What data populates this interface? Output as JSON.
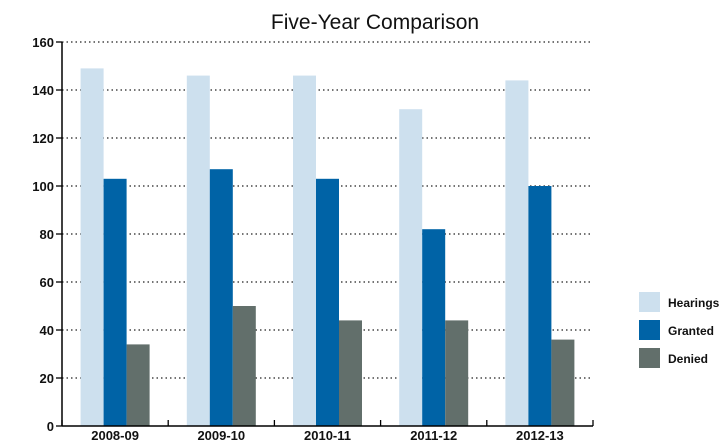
{
  "chart_data": {
    "type": "bar",
    "title": "Five-Year Comparison",
    "xlabel": "",
    "ylabel": "",
    "categories": [
      "2008-09",
      "2009-10",
      "2010-11",
      "2011-12",
      "2012-13"
    ],
    "series": [
      {
        "name": "Hearings",
        "values": [
          149,
          146,
          146,
          132,
          144
        ],
        "color": "#cde0ee"
      },
      {
        "name": "Granted",
        "values": [
          103,
          107,
          103,
          82,
          100
        ],
        "color": "#0063a6"
      },
      {
        "name": "Denied",
        "values": [
          34,
          50,
          44,
          44,
          36
        ],
        "color": "#626f6b"
      }
    ],
    "ylim": [
      0,
      160
    ],
    "yticks": [
      "0",
      "20",
      "40",
      "60",
      "80",
      "100",
      "120",
      "140",
      "160"
    ],
    "grid": "dotted horizontal",
    "legend_position": "right"
  }
}
